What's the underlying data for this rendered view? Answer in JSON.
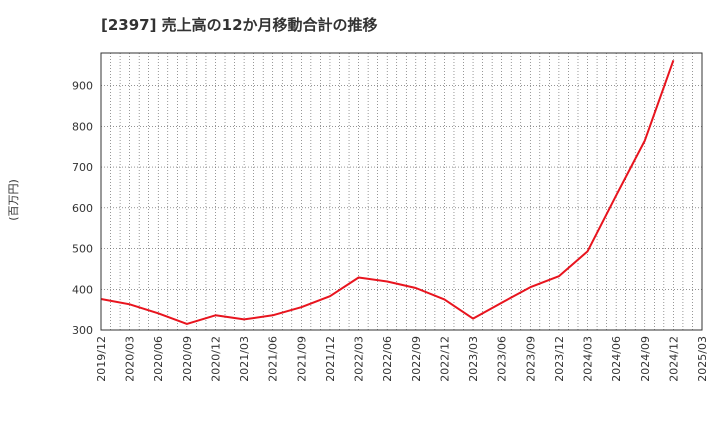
{
  "chart_data": {
    "type": "line",
    "title": "[2397]  売上高の12か月移動合計の推移",
    "ylabel": "(百万円)",
    "xlabel": "",
    "ylim": [
      300,
      980
    ],
    "yticks": [
      300,
      400,
      500,
      600,
      700,
      800,
      900
    ],
    "xticks": [
      "2019/12",
      "2020/03",
      "2020/06",
      "2020/09",
      "2020/12",
      "2021/03",
      "2021/06",
      "2021/09",
      "2021/12",
      "2022/03",
      "2022/06",
      "2022/09",
      "2022/12",
      "2023/03",
      "2023/06",
      "2023/09",
      "2023/12",
      "2024/03",
      "2024/06",
      "2024/09",
      "2024/12",
      "2025/03"
    ],
    "grid": true,
    "series": [
      {
        "name": "売上高",
        "color": "#e8141e",
        "x": [
          "2019/12",
          "2020/03",
          "2020/06",
          "2020/09",
          "2020/12",
          "2021/03",
          "2021/06",
          "2021/09",
          "2021/12",
          "2022/03",
          "2022/06",
          "2022/09",
          "2022/12",
          "2023/03",
          "2023/06",
          "2023/09",
          "2023/12",
          "2024/03",
          "2024/06",
          "2024/09",
          "2024/12"
        ],
        "values": [
          376,
          363,
          341,
          315,
          336,
          326,
          336,
          356,
          383,
          429,
          419,
          403,
          375,
          328,
          367,
          405,
          432,
          493,
          630,
          765,
          962
        ]
      }
    ]
  }
}
